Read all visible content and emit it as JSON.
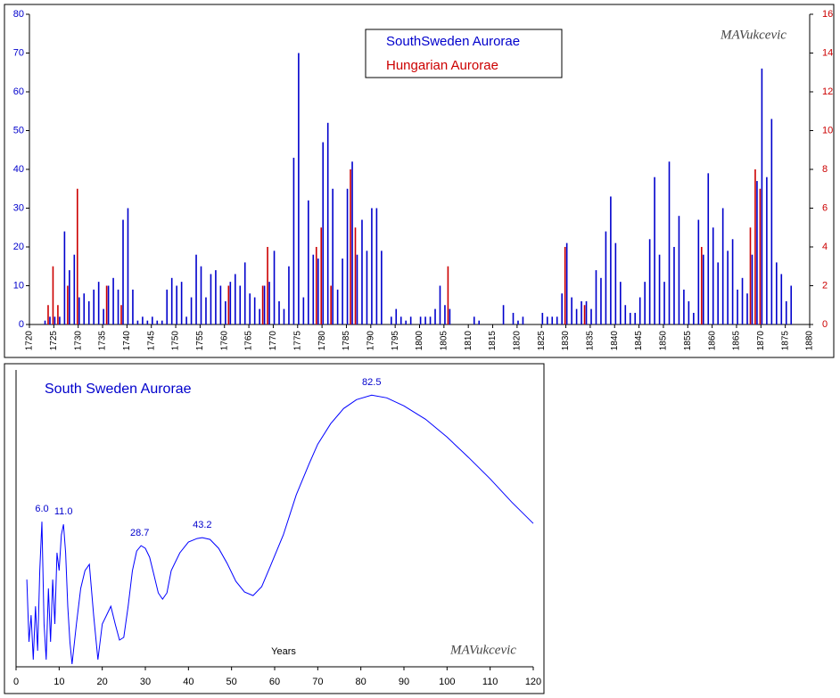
{
  "chart_data": [
    {
      "type": "bar",
      "watermark": "MAVukcevic",
      "x": [
        1721,
        1722,
        1723,
        1724,
        1725,
        1726,
        1727,
        1728,
        1729,
        1730,
        1731,
        1732,
        1733,
        1734,
        1735,
        1736,
        1737,
        1738,
        1739,
        1740,
        1741,
        1742,
        1743,
        1744,
        1745,
        1746,
        1747,
        1748,
        1749,
        1750,
        1751,
        1752,
        1753,
        1754,
        1755,
        1756,
        1757,
        1758,
        1759,
        1760,
        1761,
        1762,
        1763,
        1764,
        1765,
        1766,
        1767,
        1768,
        1769,
        1770,
        1771,
        1772,
        1773,
        1774,
        1775,
        1776,
        1777,
        1778,
        1779,
        1780,
        1781,
        1782,
        1783,
        1784,
        1785,
        1786,
        1787,
        1788,
        1789,
        1790,
        1791,
        1792,
        1793,
        1794,
        1795,
        1796,
        1797,
        1798,
        1799,
        1800,
        1801,
        1802,
        1803,
        1804,
        1805,
        1806,
        1807,
        1808,
        1809,
        1810,
        1811,
        1812,
        1813,
        1814,
        1815,
        1816,
        1817,
        1818,
        1819,
        1820,
        1821,
        1822,
        1823,
        1824,
        1825,
        1826,
        1827,
        1828,
        1829,
        1830,
        1831,
        1832,
        1833,
        1834,
        1835,
        1836,
        1837,
        1838,
        1839,
        1840,
        1841,
        1842,
        1843,
        1844,
        1845,
        1846,
        1847,
        1848,
        1849,
        1850,
        1851,
        1852,
        1853,
        1854,
        1855,
        1856,
        1857,
        1858,
        1859,
        1860,
        1861,
        1862,
        1863,
        1864,
        1865,
        1866,
        1867,
        1868,
        1869,
        1870,
        1871,
        1872,
        1873,
        1874,
        1875,
        1876
      ],
      "series": [
        {
          "name": "SouthSweden Aurorae",
          "color": "#0000cc",
          "axis": "y",
          "values": [
            0,
            0,
            1,
            2,
            2,
            2,
            24,
            14,
            18,
            7,
            8,
            6,
            9,
            11,
            4,
            10,
            12,
            9,
            27,
            30,
            9,
            1,
            2,
            1,
            2,
            1,
            1,
            9,
            12,
            10,
            11,
            2,
            7,
            18,
            15,
            7,
            13,
            14,
            10,
            6,
            11,
            13,
            10,
            16,
            8,
            7,
            4,
            10,
            11,
            19,
            6,
            4,
            15,
            43,
            70,
            7,
            32,
            18,
            17,
            47,
            52,
            35,
            9,
            17,
            35,
            42,
            18,
            27,
            19,
            30,
            30,
            19,
            0,
            2,
            4,
            2,
            1,
            2,
            0,
            2,
            2,
            2,
            4,
            10,
            5,
            4,
            0,
            0,
            0,
            0,
            2,
            1,
            0,
            0,
            0,
            0,
            5,
            0,
            3,
            1,
            2,
            0,
            0,
            0,
            3,
            2,
            2,
            2,
            8,
            21,
            7,
            4,
            6,
            6,
            4,
            14,
            12,
            24,
            33,
            21,
            11,
            5,
            3,
            3,
            7,
            11,
            22,
            38,
            18,
            11,
            42,
            20,
            28,
            9,
            6,
            3,
            27,
            18,
            39,
            25,
            16,
            30,
            19,
            22,
            9,
            12,
            8,
            18,
            37,
            66,
            38,
            53,
            16,
            13,
            6,
            10
          ]
        },
        {
          "name": "Hungarian Aurorae",
          "color": "#cc0000",
          "axis": "y2",
          "values": [
            0,
            0,
            0,
            1,
            3,
            1,
            0,
            2,
            0,
            7,
            0,
            0,
            0,
            0,
            0,
            2,
            0,
            0,
            1,
            0,
            0,
            0,
            0,
            0,
            0,
            0,
            0,
            0,
            0,
            0,
            0,
            0,
            0,
            0,
            0,
            0,
            0,
            0,
            0,
            0,
            2,
            0,
            0,
            0,
            0,
            0,
            0,
            2,
            4,
            0,
            0,
            0,
            0,
            0,
            0,
            0,
            0,
            0,
            4,
            5,
            0,
            2,
            0,
            0,
            0,
            8,
            5,
            0,
            0,
            0,
            0,
            0,
            0,
            0,
            0,
            0,
            0,
            0,
            0,
            0,
            0,
            0,
            0,
            0,
            0,
            3,
            0,
            0,
            0,
            0,
            0,
            0,
            0,
            0,
            0,
            0,
            0,
            0,
            0,
            0,
            0,
            0,
            0,
            0,
            0,
            0,
            0,
            0,
            0,
            4,
            0,
            0,
            0,
            1,
            0,
            0,
            0,
            0,
            0,
            0,
            0,
            0,
            0,
            0,
            0,
            0,
            0,
            0,
            0,
            0,
            0,
            0,
            0,
            0,
            0,
            0,
            0,
            4,
            0,
            0,
            0,
            0,
            0,
            0,
            0,
            0,
            0,
            5,
            8,
            7,
            0,
            0,
            0,
            0,
            0,
            0
          ]
        }
      ],
      "xlim": [
        1720,
        1880
      ],
      "xticks": [
        1720,
        1725,
        1730,
        1735,
        1740,
        1745,
        1750,
        1755,
        1760,
        1765,
        1770,
        1775,
        1780,
        1785,
        1790,
        1795,
        1800,
        1805,
        1810,
        1815,
        1820,
        1825,
        1830,
        1835,
        1840,
        1845,
        1850,
        1855,
        1860,
        1865,
        1870,
        1875,
        1880
      ],
      "ylim": [
        0,
        80
      ],
      "yticks": [
        0,
        10,
        20,
        30,
        40,
        50,
        60,
        70,
        80
      ],
      "y2lim": [
        0,
        16
      ],
      "y2ticks": [
        0,
        2,
        4,
        6,
        8,
        10,
        12,
        14,
        16
      ]
    },
    {
      "type": "line",
      "title": "South Sweden Aurorae",
      "xlabel": "Years",
      "watermark": "MAVukcevic",
      "color": "#0000ff",
      "x": [
        2.5,
        3,
        3.5,
        4,
        4.5,
        5,
        5.5,
        6,
        6.5,
        7,
        7.5,
        8,
        8.5,
        9,
        9.5,
        10,
        10.5,
        11,
        11.5,
        12,
        12.5,
        13,
        14,
        15,
        16,
        17,
        18,
        19,
        20,
        21,
        22,
        23,
        24,
        25,
        26,
        27,
        28,
        29,
        30,
        31,
        32,
        33,
        34,
        35,
        36,
        38,
        40,
        42,
        43.2,
        45,
        47,
        49,
        51,
        53,
        55,
        57,
        59,
        62,
        65,
        68,
        70,
        73,
        76,
        79,
        82.5,
        86,
        90,
        95,
        100,
        105,
        110,
        115,
        120
      ],
      "values": [
        29.4,
        8.4,
        17.4,
        2.4,
        20.4,
        5.4,
        32.4,
        48.9,
        14.4,
        2.4,
        26.4,
        8.4,
        29.4,
        14.4,
        38.4,
        32.4,
        44.4,
        48,
        38.4,
        20.4,
        8.4,
        0.9,
        14.4,
        26.4,
        32.4,
        34.5,
        17.4,
        2.4,
        14.4,
        17.4,
        20.4,
        14.4,
        9,
        9.9,
        20.4,
        32.4,
        39,
        40.8,
        39.9,
        36.9,
        30.9,
        24.9,
        22.8,
        24.9,
        32.4,
        38.4,
        42,
        43.2,
        43.5,
        42.9,
        39.9,
        34.8,
        28.8,
        25.2,
        24,
        27,
        33.9,
        44.4,
        57.9,
        68.4,
        75,
        81.9,
        87,
        90,
        91.5,
        90.6,
        87.9,
        83.4,
        77.4,
        70.5,
        63.3,
        55.5,
        48.3
      ],
      "xlim": [
        0,
        120
      ],
      "xticks": [
        0,
        10,
        20,
        30,
        40,
        50,
        60,
        70,
        80,
        90,
        100,
        110,
        120
      ],
      "ylim": [
        0,
        100
      ],
      "annotations": [
        {
          "text": "6.0",
          "x": 6
        },
        {
          "text": "11.0",
          "x": 11
        },
        {
          "text": "28.7",
          "x": 28.7
        },
        {
          "text": "43.2",
          "x": 43.2
        },
        {
          "text": "82.5",
          "x": 82.5
        }
      ]
    }
  ]
}
